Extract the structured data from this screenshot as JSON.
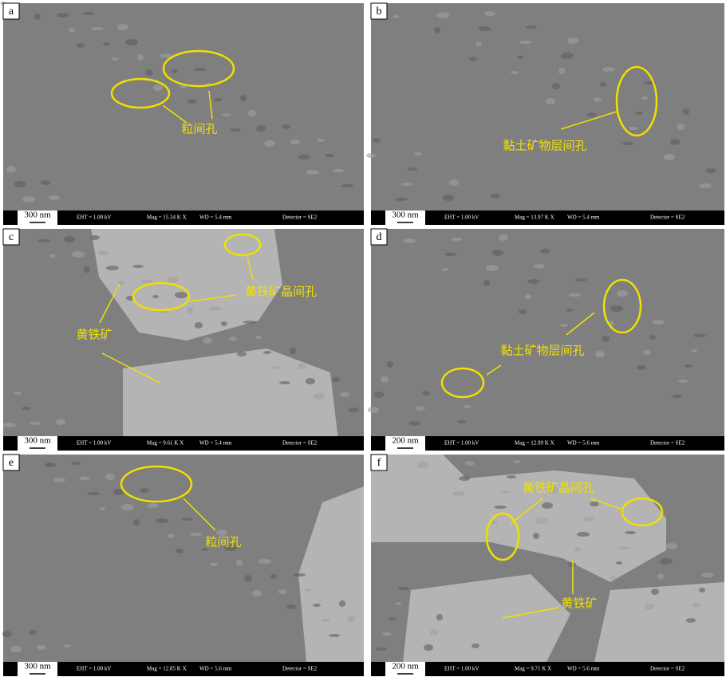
{
  "panels": [
    {
      "letter": "a",
      "scale": "300 nm",
      "eht": "EHT = 1.00 kV",
      "mag": "Mag = 15.34 K X",
      "wd": "WD = 5.4 mm",
      "detector": "Detector = SE2",
      "labels": [
        "粒间孔"
      ]
    },
    {
      "letter": "b",
      "scale": "300 nm",
      "eht": "EHT = 1.00 kV",
      "mag": "Mag = 13.97 K X",
      "wd": "WD = 5.4 mm",
      "detector": "Detector = SE2",
      "labels": [
        "黏土矿物层间孔"
      ]
    },
    {
      "letter": "c",
      "scale": "300 nm",
      "eht": "EHT = 1.00 kV",
      "mag": "Mag = 9.61 K X",
      "wd": "WD = 5.4 mm",
      "detector": "Detector = SE2",
      "labels": [
        "黄铁矿晶间孔",
        "黄铁矿"
      ]
    },
    {
      "letter": "d",
      "scale": "200 nm",
      "eht": "EHT = 1.00 kV",
      "mag": "Mag = 12.99 K X",
      "wd": "WD = 5.6 mm",
      "detector": "Detector = SE2",
      "labels": [
        "黏土矿物层间孔"
      ]
    },
    {
      "letter": "e",
      "scale": "300 nm",
      "eht": "EHT = 1.00 kV",
      "mag": "Mag = 12.85 K X",
      "wd": "WD = 5.6 mm",
      "detector": "Detector = SE2",
      "labels": [
        "粒间孔"
      ]
    },
    {
      "letter": "f",
      "scale": "200 nm",
      "eht": "EHT = 1.00 kV",
      "mag": "Mag = 9.71 K X",
      "wd": "WD = 5.6 mm",
      "detector": "Detector = SE2",
      "labels": [
        "黄铁矿晶间孔",
        "黄铁矿"
      ]
    }
  ]
}
